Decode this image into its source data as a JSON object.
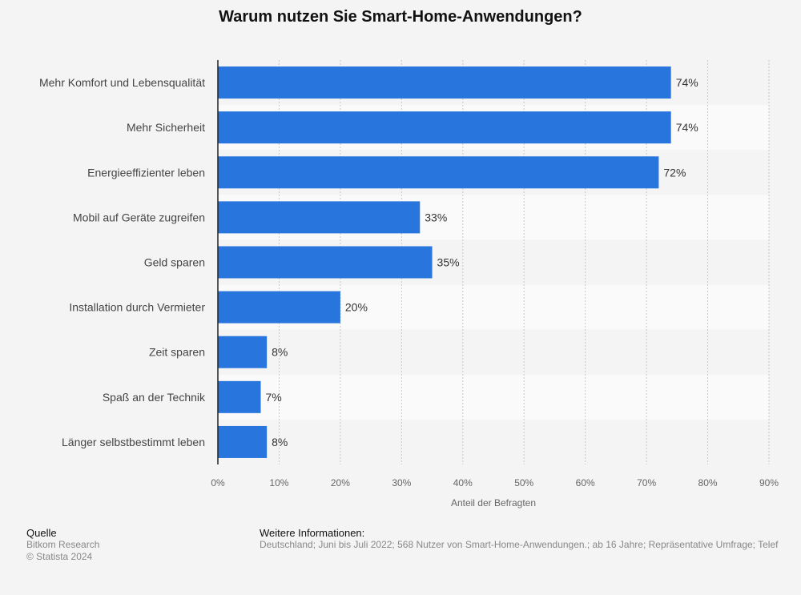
{
  "chart_data": {
    "type": "bar",
    "orientation": "horizontal",
    "title": "Warum nutzen Sie Smart-Home-Anwendungen?",
    "categories": [
      "Mehr Komfort und Lebensqualität",
      "Mehr Sicherheit",
      "Energieeffizienter leben",
      "Mobil auf Geräte zugreifen",
      "Geld sparen",
      "Installation durch Vermieter",
      "Zeit sparen",
      "Spaß an der Technik",
      "Länger selbstbestimmt leben"
    ],
    "values": [
      74,
      74,
      72,
      33,
      35,
      20,
      8,
      7,
      8
    ],
    "value_labels": [
      "74%",
      "74%",
      "72%",
      "33%",
      "35%",
      "20%",
      "8%",
      "7%",
      "8%"
    ],
    "xlabel": "Anteil der Befragten",
    "ylabel": "",
    "xlim": [
      0,
      90
    ],
    "xticks": [
      0,
      10,
      20,
      30,
      40,
      50,
      60,
      70,
      80,
      90
    ],
    "xtick_labels": [
      "0%",
      "10%",
      "20%",
      "30%",
      "40%",
      "50%",
      "60%",
      "70%",
      "80%",
      "90%"
    ],
    "grid": true,
    "bar_color": "#2876dd"
  },
  "footer": {
    "source_heading": "Quelle",
    "source_name": "Bitkom Research",
    "copyright": "© Statista 2024",
    "info_heading": "Weitere Informationen:",
    "info_text": "Deutschland; Juni bis Juli 2022; 568 Nutzer von Smart-Home-Anwendungen.; ab 16 Jahre; Repräsentative Umfrage; Telef"
  }
}
